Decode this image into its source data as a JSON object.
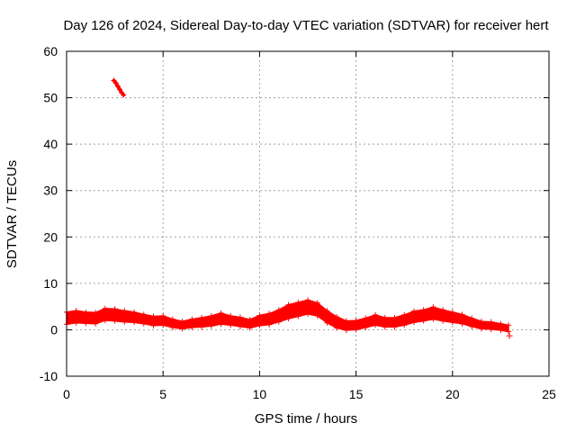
{
  "chart_data": {
    "type": "scatter",
    "title": "Day 126 of 2024, Sidereal Day-to-day VTEC variation (SDTVAR) for receiver hert",
    "xlabel": "GPS time / hours",
    "ylabel": "SDTVAR / TECUs",
    "xlim": [
      0,
      25
    ],
    "ylim": [
      -10,
      60
    ],
    "xticks": [
      0,
      5,
      10,
      15,
      20,
      25
    ],
    "yticks": [
      -10,
      0,
      10,
      20,
      30,
      40,
      50,
      60
    ],
    "xtick_labels": [
      "0",
      "5",
      "10",
      "15",
      "20",
      "25"
    ],
    "ytick_labels": [
      "-10",
      "0",
      "10",
      "20",
      "30",
      "40",
      "50",
      "60"
    ],
    "grid": true,
    "series": [
      {
        "name": "SDTVAR",
        "color": "#ff0000",
        "marker": "plus",
        "band_center": {
          "x": [
            0,
            0.5,
            1,
            1.5,
            2,
            2.5,
            3,
            3.5,
            4,
            4.5,
            5,
            5.5,
            6,
            6.5,
            7,
            7.5,
            8,
            8.5,
            9,
            9.5,
            10,
            10.5,
            11,
            11.5,
            12,
            12.5,
            13,
            13.5,
            14,
            14.5,
            15,
            15.5,
            16,
            16.5,
            17,
            17.5,
            18,
            18.5,
            19,
            19.5,
            20,
            20.5,
            21,
            21.5,
            22,
            22.5,
            22.9
          ],
          "y": [
            2.5,
            2.8,
            2.6,
            2.5,
            3.3,
            3.2,
            2.9,
            2.7,
            2.3,
            1.9,
            2.0,
            1.4,
            1.0,
            1.4,
            1.6,
            1.9,
            2.4,
            2.0,
            1.7,
            1.3,
            2.0,
            2.3,
            3.0,
            3.9,
            4.4,
            4.9,
            4.4,
            2.8,
            1.6,
            0.9,
            1.0,
            1.5,
            2.1,
            1.6,
            1.6,
            2.1,
            2.8,
            3.1,
            3.6,
            3.1,
            2.7,
            2.3,
            1.6,
            1.0,
            0.9,
            0.6,
            0.3
          ]
        },
        "band_half_width": [
          1.3,
          1.3,
          1.2,
          1.2,
          1.3,
          1.3,
          1.2,
          1.1,
          1.0,
          1.0,
          1.0,
          0.9,
          0.8,
          0.9,
          1.0,
          1.1,
          1.2,
          1.0,
          1.0,
          0.9,
          1.1,
          1.2,
          1.3,
          1.5,
          1.5,
          1.5,
          1.4,
          1.3,
          1.2,
          1.0,
          1.0,
          1.0,
          1.1,
          1.0,
          1.0,
          1.1,
          1.2,
          1.2,
          1.3,
          1.2,
          1.1,
          1.0,
          0.9,
          0.8,
          0.8,
          0.7,
          0.7
        ],
        "outlier_arc": {
          "x": [
            2.45,
            2.55,
            2.65,
            2.75,
            2.85,
            2.95
          ],
          "y": [
            53.7,
            53.2,
            52.5,
            51.8,
            51.1,
            50.6
          ]
        },
        "isolated_points": [
          {
            "x": 22.95,
            "y": -1.3
          }
        ]
      }
    ]
  }
}
